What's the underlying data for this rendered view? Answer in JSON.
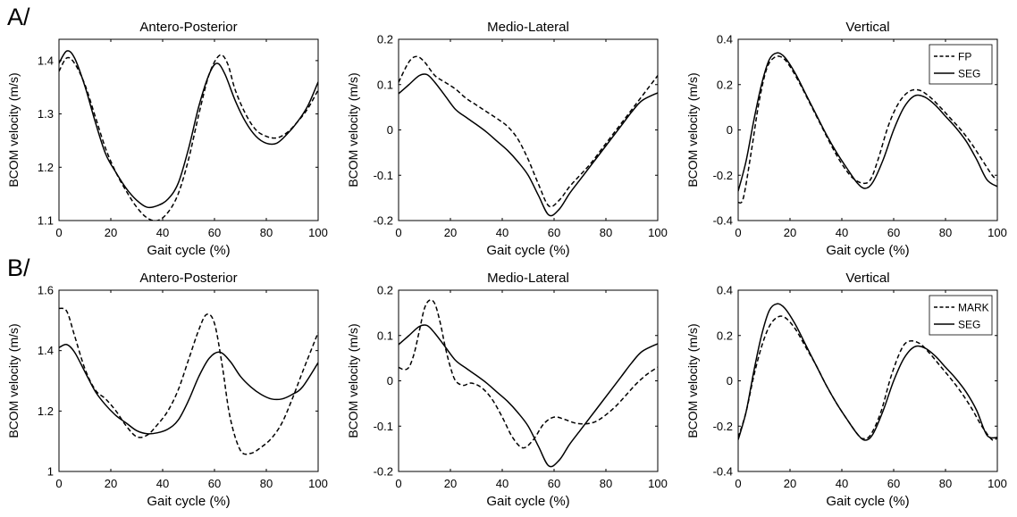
{
  "figure": {
    "row_labels": [
      "A/",
      "B/"
    ]
  },
  "chart_data": [
    {
      "type": "line",
      "row": 0,
      "col": 0,
      "title": "Antero-Posterior",
      "xlabel": "Gait cycle (%)",
      "ylabel": "BCOM velocity (m/s)",
      "xlim": [
        0,
        100
      ],
      "ylim": [
        1.1,
        1.44
      ],
      "xticks": [
        0,
        20,
        40,
        60,
        80,
        100
      ],
      "yticks": [
        1.1,
        1.2,
        1.3,
        1.4
      ],
      "ytick_labels": [
        "1.1",
        "1.2",
        "1.3",
        "1.4"
      ],
      "legend": [],
      "series": [
        {
          "name": "SEG",
          "style": "solid",
          "x": [
            0,
            3,
            6,
            10,
            14,
            18,
            22,
            26,
            30,
            34,
            38,
            42,
            46,
            50,
            54,
            58,
            61,
            64,
            68,
            72,
            76,
            80,
            84,
            88,
            92,
            96,
            100
          ],
          "y": [
            1.395,
            1.418,
            1.405,
            1.352,
            1.285,
            1.225,
            1.19,
            1.16,
            1.138,
            1.125,
            1.128,
            1.14,
            1.17,
            1.235,
            1.315,
            1.375,
            1.395,
            1.375,
            1.325,
            1.285,
            1.258,
            1.245,
            1.245,
            1.262,
            1.285,
            1.315,
            1.36
          ]
        },
        {
          "name": "FP",
          "style": "dashed",
          "x": [
            0,
            3,
            6,
            10,
            14,
            18,
            22,
            26,
            30,
            34,
            38,
            42,
            46,
            50,
            54,
            58,
            62,
            65,
            68,
            72,
            76,
            80,
            84,
            88,
            92,
            96,
            100
          ],
          "y": [
            1.38,
            1.405,
            1.395,
            1.355,
            1.295,
            1.235,
            1.19,
            1.155,
            1.125,
            1.105,
            1.1,
            1.115,
            1.15,
            1.215,
            1.3,
            1.375,
            1.41,
            1.395,
            1.345,
            1.3,
            1.27,
            1.258,
            1.255,
            1.265,
            1.285,
            1.31,
            1.345
          ]
        }
      ]
    },
    {
      "type": "line",
      "row": 0,
      "col": 1,
      "title": "Medio-Lateral",
      "xlabel": "Gait cycle (%)",
      "ylabel": "BCOM velocity (m/s)",
      "xlim": [
        0,
        100
      ],
      "ylim": [
        -0.2,
        0.2
      ],
      "xticks": [
        0,
        20,
        40,
        60,
        80,
        100
      ],
      "yticks": [
        -0.2,
        -0.1,
        0,
        0.1,
        0.2
      ],
      "ytick_labels": [
        "-0.2",
        "-0.1",
        "0",
        "0.1",
        "0.2"
      ],
      "legend": [],
      "series": [
        {
          "name": "SEG",
          "style": "solid",
          "x": [
            0,
            4,
            8,
            11,
            14,
            18,
            22,
            26,
            30,
            34,
            38,
            42,
            46,
            50,
            54,
            58,
            62,
            66,
            70,
            74,
            78,
            82,
            86,
            90,
            94,
            100
          ],
          "y": [
            0.08,
            0.1,
            0.12,
            0.122,
            0.105,
            0.075,
            0.045,
            0.028,
            0.012,
            -0.005,
            -0.025,
            -0.045,
            -0.07,
            -0.1,
            -0.145,
            -0.188,
            -0.175,
            -0.14,
            -0.11,
            -0.08,
            -0.05,
            -0.02,
            0.01,
            0.04,
            0.065,
            0.082
          ]
        },
        {
          "name": "FP",
          "style": "dashed",
          "x": [
            0,
            4,
            7,
            10,
            14,
            18,
            22,
            26,
            30,
            34,
            38,
            42,
            46,
            50,
            54,
            58,
            62,
            66,
            70,
            74,
            78,
            82,
            86,
            90,
            94,
            100
          ],
          "y": [
            0.105,
            0.15,
            0.162,
            0.15,
            0.12,
            0.105,
            0.09,
            0.07,
            0.055,
            0.04,
            0.025,
            0.008,
            -0.02,
            -0.065,
            -0.12,
            -0.168,
            -0.155,
            -0.125,
            -0.1,
            -0.075,
            -0.045,
            -0.015,
            0.015,
            0.045,
            0.075,
            0.12
          ]
        }
      ]
    },
    {
      "type": "line",
      "row": 0,
      "col": 2,
      "title": "Vertical",
      "xlabel": "Gait cycle (%)",
      "ylabel": "BCOM velocity (m/s)",
      "xlim": [
        0,
        100
      ],
      "ylim": [
        -0.4,
        0.4
      ],
      "xticks": [
        0,
        20,
        40,
        60,
        80,
        100
      ],
      "yticks": [
        -0.4,
        -0.2,
        0,
        0.2,
        0.4
      ],
      "ytick_labels": [
        "-0.4",
        "-0.2",
        "0",
        "0.2",
        "0.4"
      ],
      "legend": [
        {
          "label": "FP",
          "style": "dashed"
        },
        {
          "label": "SEG",
          "style": "solid"
        }
      ],
      "legend_position": "top-right",
      "series": [
        {
          "name": "SEG",
          "style": "solid",
          "x": [
            0,
            3,
            6,
            9,
            12,
            15,
            18,
            22,
            26,
            30,
            34,
            38,
            42,
            46,
            49,
            52,
            56,
            60,
            64,
            68,
            72,
            76,
            80,
            84,
            88,
            92,
            96,
            100
          ],
          "y": [
            -0.27,
            -0.14,
            0.04,
            0.2,
            0.31,
            0.34,
            0.32,
            0.25,
            0.16,
            0.07,
            -0.02,
            -0.1,
            -0.17,
            -0.235,
            -0.258,
            -0.23,
            -0.13,
            0.0,
            0.1,
            0.15,
            0.145,
            0.11,
            0.06,
            0.01,
            -0.05,
            -0.13,
            -0.22,
            -0.25
          ]
        },
        {
          "name": "FP",
          "style": "dashed",
          "x": [
            0,
            2,
            5,
            8,
            11,
            14,
            17,
            20,
            24,
            28,
            32,
            36,
            40,
            44,
            48,
            51,
            54,
            58,
            62,
            66,
            70,
            74,
            78,
            82,
            86,
            90,
            94,
            98,
            100
          ],
          "y": [
            -0.32,
            -0.3,
            -0.1,
            0.12,
            0.27,
            0.32,
            0.32,
            0.28,
            0.2,
            0.11,
            0.02,
            -0.07,
            -0.15,
            -0.21,
            -0.235,
            -0.22,
            -0.13,
            0.02,
            0.12,
            0.17,
            0.175,
            0.145,
            0.1,
            0.05,
            0.0,
            -0.06,
            -0.13,
            -0.2,
            -0.22
          ]
        }
      ]
    },
    {
      "type": "line",
      "row": 1,
      "col": 0,
      "title": "Antero-Posterior",
      "xlabel": "Gait cycle (%)",
      "ylabel": "BCOM velocity (m/s)",
      "xlim": [
        0,
        100
      ],
      "ylim": [
        1.0,
        1.6
      ],
      "xticks": [
        0,
        20,
        40,
        60,
        80,
        100
      ],
      "yticks": [
        1.0,
        1.2,
        1.4,
        1.6
      ],
      "ytick_labels": [
        "1",
        "1.2",
        "1.4",
        "1.6"
      ],
      "legend": [],
      "series": [
        {
          "name": "SEG",
          "style": "solid",
          "x": [
            0,
            3,
            6,
            10,
            14,
            18,
            22,
            26,
            30,
            34,
            38,
            42,
            46,
            50,
            54,
            58,
            62,
            66,
            70,
            74,
            78,
            82,
            86,
            90,
            94,
            100
          ],
          "y": [
            1.41,
            1.42,
            1.395,
            1.33,
            1.265,
            1.22,
            1.185,
            1.16,
            1.135,
            1.125,
            1.128,
            1.14,
            1.17,
            1.235,
            1.315,
            1.375,
            1.395,
            1.365,
            1.315,
            1.28,
            1.255,
            1.24,
            1.24,
            1.255,
            1.28,
            1.36
          ]
        },
        {
          "name": "MARK",
          "style": "dashed",
          "x": [
            0,
            3,
            6,
            10,
            14,
            18,
            22,
            26,
            30,
            34,
            38,
            42,
            46,
            50,
            54,
            57,
            60,
            63,
            66,
            70,
            74,
            78,
            82,
            86,
            90,
            94,
            100
          ],
          "y": [
            1.54,
            1.53,
            1.45,
            1.34,
            1.27,
            1.24,
            1.2,
            1.15,
            1.115,
            1.12,
            1.155,
            1.2,
            1.27,
            1.37,
            1.47,
            1.52,
            1.49,
            1.35,
            1.18,
            1.07,
            1.06,
            1.08,
            1.11,
            1.16,
            1.24,
            1.33,
            1.46
          ]
        }
      ]
    },
    {
      "type": "line",
      "row": 1,
      "col": 1,
      "title": "Medio-Lateral",
      "xlabel": "Gait cycle (%)",
      "ylabel": "BCOM velocity (m/s)",
      "xlim": [
        0,
        100
      ],
      "ylim": [
        -0.2,
        0.2
      ],
      "xticks": [
        0,
        20,
        40,
        60,
        80,
        100
      ],
      "yticks": [
        -0.2,
        -0.1,
        0,
        0.1,
        0.2
      ],
      "ytick_labels": [
        "-0.2",
        "-0.1",
        "0",
        "0.1",
        "0.2"
      ],
      "legend": [],
      "series": [
        {
          "name": "SEG",
          "style": "solid",
          "x": [
            0,
            4,
            8,
            11,
            14,
            18,
            22,
            26,
            30,
            34,
            38,
            42,
            46,
            50,
            54,
            58,
            62,
            66,
            70,
            74,
            78,
            82,
            86,
            90,
            94,
            100
          ],
          "y": [
            0.08,
            0.1,
            0.12,
            0.122,
            0.105,
            0.075,
            0.045,
            0.028,
            0.012,
            -0.005,
            -0.025,
            -0.045,
            -0.07,
            -0.1,
            -0.145,
            -0.188,
            -0.175,
            -0.14,
            -0.11,
            -0.08,
            -0.05,
            -0.02,
            0.01,
            0.04,
            0.065,
            0.082
          ]
        },
        {
          "name": "MARK",
          "style": "dashed",
          "x": [
            0,
            2,
            4,
            6,
            8,
            10,
            12,
            14,
            16,
            18,
            20,
            22,
            25,
            28,
            32,
            36,
            40,
            44,
            48,
            52,
            56,
            60,
            64,
            68,
            72,
            76,
            80,
            84,
            88,
            92,
            96,
            100
          ],
          "y": [
            0.03,
            0.025,
            0.03,
            0.06,
            0.11,
            0.16,
            0.178,
            0.17,
            0.13,
            0.075,
            0.03,
            0.0,
            -0.01,
            -0.005,
            -0.015,
            -0.04,
            -0.08,
            -0.125,
            -0.148,
            -0.13,
            -0.095,
            -0.08,
            -0.085,
            -0.093,
            -0.095,
            -0.09,
            -0.075,
            -0.055,
            -0.03,
            -0.005,
            0.015,
            0.03
          ]
        }
      ]
    },
    {
      "type": "line",
      "row": 1,
      "col": 2,
      "title": "Vertical",
      "xlabel": "Gait cycle (%)",
      "ylabel": "BCOM velocity (m/s)",
      "xlim": [
        0,
        100
      ],
      "ylim": [
        -0.4,
        0.4
      ],
      "xticks": [
        0,
        20,
        40,
        60,
        80,
        100
      ],
      "yticks": [
        -0.4,
        -0.2,
        0,
        0.2,
        0.4
      ],
      "ytick_labels": [
        "-0.4",
        "-0.2",
        "0",
        "0.2",
        "0.4"
      ],
      "legend": [
        {
          "label": "MARK",
          "style": "dashed"
        },
        {
          "label": "SEG",
          "style": "solid"
        }
      ],
      "legend_position": "top-right",
      "series": [
        {
          "name": "SEG",
          "style": "solid",
          "x": [
            0,
            3,
            6,
            9,
            12,
            15,
            18,
            22,
            26,
            30,
            34,
            38,
            42,
            46,
            49,
            52,
            56,
            60,
            64,
            68,
            72,
            76,
            80,
            84,
            88,
            92,
            96,
            100
          ],
          "y": [
            -0.26,
            -0.14,
            0.04,
            0.2,
            0.31,
            0.34,
            0.32,
            0.25,
            0.16,
            0.07,
            -0.02,
            -0.1,
            -0.17,
            -0.235,
            -0.262,
            -0.235,
            -0.13,
            0.0,
            0.1,
            0.15,
            0.145,
            0.11,
            0.06,
            0.01,
            -0.05,
            -0.13,
            -0.24,
            -0.25
          ]
        },
        {
          "name": "MARK",
          "style": "dashed",
          "x": [
            0,
            3,
            6,
            9,
            12,
            15,
            18,
            22,
            26,
            30,
            34,
            38,
            42,
            46,
            48,
            51,
            55,
            59,
            63,
            66,
            70,
            74,
            78,
            82,
            86,
            90,
            94,
            98,
            100
          ],
          "y": [
            -0.25,
            -0.14,
            0.02,
            0.15,
            0.24,
            0.28,
            0.28,
            0.23,
            0.15,
            0.07,
            -0.02,
            -0.1,
            -0.17,
            -0.235,
            -0.255,
            -0.24,
            -0.14,
            0.02,
            0.14,
            0.175,
            0.165,
            0.12,
            0.065,
            0.01,
            -0.05,
            -0.12,
            -0.2,
            -0.26,
            -0.25
          ]
        }
      ]
    }
  ]
}
